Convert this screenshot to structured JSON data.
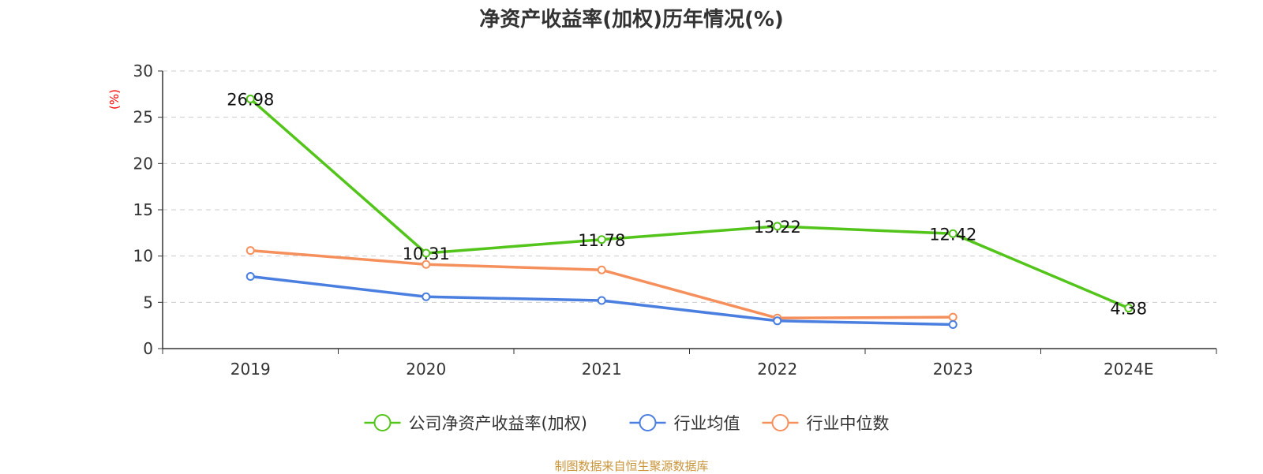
{
  "chart_data": {
    "type": "line",
    "title": "净资产收益率(加权)历年情况(%)",
    "ylabel": "(%)",
    "ylim": [
      0,
      30
    ],
    "yticks": [
      0,
      5,
      10,
      15,
      20,
      25,
      30
    ],
    "categories": [
      "2019",
      "2020",
      "2021",
      "2022",
      "2023",
      "2024E"
    ],
    "grid": "horizontal dashed",
    "legend_position": "bottom",
    "series": [
      {
        "name": "公司净资产收益率(加权)",
        "color": "#52c41a",
        "values": [
          26.98,
          10.31,
          11.78,
          13.22,
          12.42,
          4.38
        ],
        "labels": [
          "26.98",
          "10.31",
          "11.78",
          "13.22",
          "12.42",
          "4.38"
        ]
      },
      {
        "name": "行业均值",
        "color": "#4a7fe0",
        "values": [
          7.8,
          5.6,
          5.2,
          3.0,
          2.6,
          null
        ]
      },
      {
        "name": "行业中位数",
        "color": "#f5905c",
        "values": [
          10.6,
          9.1,
          8.5,
          3.3,
          3.4,
          null
        ]
      }
    ]
  },
  "source_note": "制图数据来自恒生聚源数据库"
}
